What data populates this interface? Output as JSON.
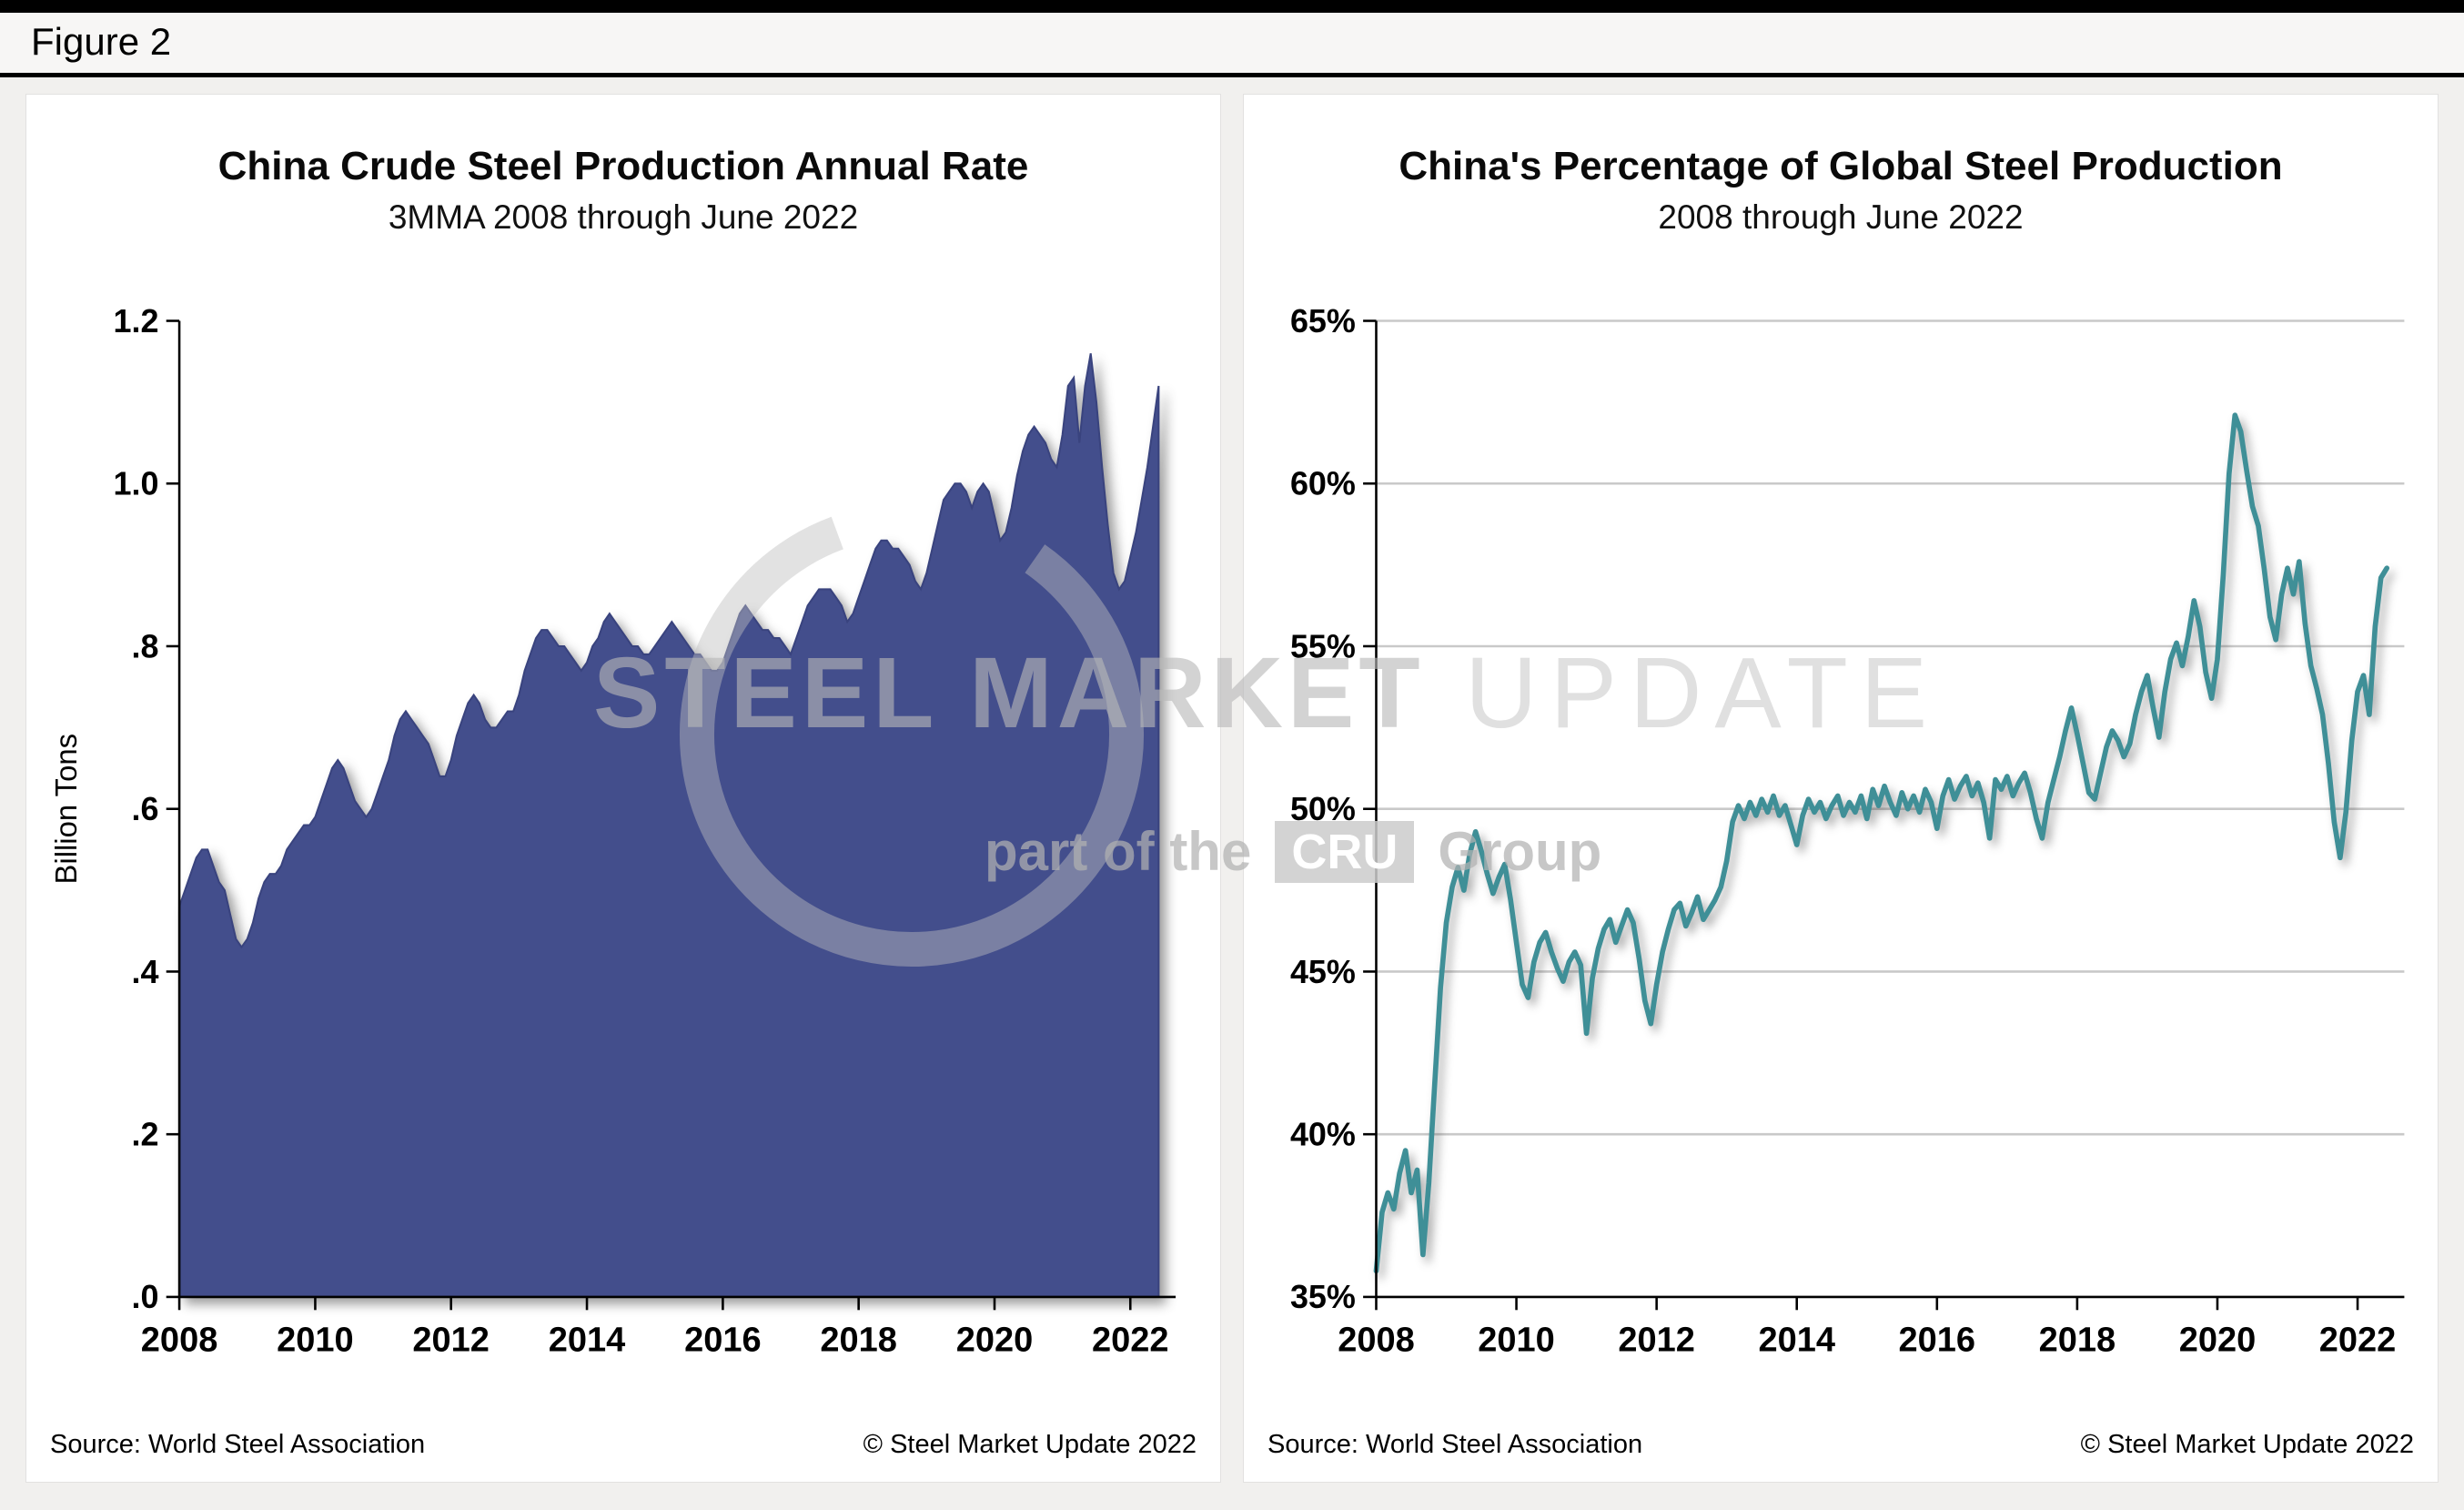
{
  "figure_label": "Figure 2",
  "watermark": {
    "title_bold": "STEEL MARKET",
    "title_light": " UPDATE",
    "subtitle_prefix": "part of the",
    "subtitle_badge": "CRU",
    "subtitle_suffix": "Group"
  },
  "chart_data": [
    {
      "type": "area",
      "title": "China Crude Steel Production Annual Rate",
      "subtitle": "3MMA 2008 through June 2022",
      "ylabel": "Billion Tons",
      "ylim": [
        0,
        1.2
      ],
      "ytick_values": [
        0,
        0.2,
        0.4,
        0.6,
        0.8,
        1.0,
        1.2
      ],
      "ytick_labels": [
        ".0",
        ".2",
        ".4",
        ".6",
        ".8",
        "1.0",
        "1.2"
      ],
      "xtick_labels": [
        "2008",
        "2010",
        "2012",
        "2014",
        "2016",
        "2018",
        "2020",
        "2022"
      ],
      "x_start": "2008-01",
      "x_end": "2022-06",
      "frequency": "monthly",
      "grid": false,
      "fill_color": "#434E8C",
      "edge_color": "#39437e",
      "source": "Source: World Steel Association",
      "copyright": "© Steel Market Update 2022",
      "values": [
        0.48,
        0.5,
        0.52,
        0.54,
        0.55,
        0.55,
        0.53,
        0.51,
        0.5,
        0.47,
        0.44,
        0.43,
        0.44,
        0.46,
        0.49,
        0.51,
        0.52,
        0.52,
        0.53,
        0.55,
        0.56,
        0.57,
        0.58,
        0.58,
        0.59,
        0.61,
        0.63,
        0.65,
        0.66,
        0.65,
        0.63,
        0.61,
        0.6,
        0.59,
        0.6,
        0.62,
        0.64,
        0.66,
        0.69,
        0.71,
        0.72,
        0.71,
        0.7,
        0.69,
        0.68,
        0.66,
        0.64,
        0.64,
        0.66,
        0.69,
        0.71,
        0.73,
        0.74,
        0.73,
        0.71,
        0.7,
        0.7,
        0.71,
        0.72,
        0.72,
        0.74,
        0.77,
        0.79,
        0.81,
        0.82,
        0.82,
        0.81,
        0.8,
        0.8,
        0.79,
        0.78,
        0.77,
        0.78,
        0.8,
        0.81,
        0.83,
        0.84,
        0.83,
        0.82,
        0.81,
        0.8,
        0.8,
        0.79,
        0.79,
        0.8,
        0.81,
        0.82,
        0.83,
        0.82,
        0.81,
        0.8,
        0.79,
        0.79,
        0.78,
        0.77,
        0.77,
        0.78,
        0.8,
        0.82,
        0.84,
        0.85,
        0.84,
        0.83,
        0.82,
        0.82,
        0.81,
        0.81,
        0.8,
        0.79,
        0.81,
        0.83,
        0.85,
        0.86,
        0.87,
        0.87,
        0.87,
        0.86,
        0.85,
        0.83,
        0.84,
        0.86,
        0.88,
        0.9,
        0.92,
        0.93,
        0.93,
        0.92,
        0.92,
        0.91,
        0.9,
        0.88,
        0.87,
        0.89,
        0.92,
        0.95,
        0.98,
        0.99,
        1.0,
        1.0,
        0.99,
        0.97,
        0.99,
        1.0,
        0.99,
        0.96,
        0.93,
        0.94,
        0.97,
        1.01,
        1.04,
        1.06,
        1.07,
        1.06,
        1.05,
        1.03,
        1.02,
        1.06,
        1.12,
        1.13,
        1.05,
        1.12,
        1.16,
        1.1,
        1.02,
        0.95,
        0.89,
        0.87,
        0.88,
        0.91,
        0.94,
        0.98,
        1.02,
        1.07,
        1.12
      ]
    },
    {
      "type": "line",
      "title": "China's Percentage of Global Steel Production",
      "subtitle": "2008 through June 2022",
      "ylabel": "",
      "ylim": [
        35,
        65
      ],
      "ytick_values": [
        35,
        40,
        45,
        50,
        55,
        60,
        65
      ],
      "ytick_labels": [
        "35%",
        "40%",
        "45%",
        "50%",
        "55%",
        "60%",
        "65%"
      ],
      "xtick_labels": [
        "2008",
        "2010",
        "2012",
        "2014",
        "2016",
        "2018",
        "2020",
        "2022"
      ],
      "x_start": "2008-01",
      "x_end": "2022-06",
      "frequency": "monthly",
      "grid": true,
      "grid_color": "#c9c9c9",
      "line_color": "#3F8F97",
      "source": "Source: World Steel Association",
      "copyright": "© Steel Market Update 2022",
      "values": [
        35.8,
        37.6,
        38.2,
        37.7,
        38.8,
        39.5,
        38.2,
        38.9,
        36.3,
        38.5,
        41.5,
        44.5,
        46.5,
        47.6,
        48.2,
        47.5,
        48.6,
        49.3,
        48.7,
        48.0,
        47.4,
        47.9,
        48.3,
        47.2,
        45.9,
        44.6,
        44.2,
        45.3,
        45.9,
        46.2,
        45.6,
        45.1,
        44.7,
        45.3,
        45.6,
        45.2,
        43.1,
        44.8,
        45.7,
        46.3,
        46.6,
        45.9,
        46.4,
        46.9,
        46.5,
        45.4,
        44.1,
        43.4,
        44.6,
        45.6,
        46.3,
        46.9,
        47.1,
        46.4,
        46.8,
        47.3,
        46.6,
        46.9,
        47.2,
        47.6,
        48.4,
        49.6,
        50.1,
        49.7,
        50.2,
        49.8,
        50.3,
        49.9,
        50.4,
        49.8,
        50.1,
        49.5,
        48.9,
        49.8,
        50.3,
        49.9,
        50.2,
        49.7,
        50.1,
        50.4,
        49.8,
        50.2,
        49.9,
        50.4,
        49.7,
        50.6,
        50.1,
        50.7,
        50.2,
        49.8,
        50.5,
        50.0,
        50.4,
        49.9,
        50.6,
        50.2,
        49.4,
        50.4,
        50.9,
        50.3,
        50.7,
        51.0,
        50.4,
        50.8,
        50.2,
        49.1,
        50.9,
        50.6,
        51.0,
        50.4,
        50.8,
        51.1,
        50.5,
        49.7,
        49.1,
        50.2,
        50.9,
        51.6,
        52.4,
        53.1,
        52.3,
        51.4,
        50.5,
        50.3,
        51.1,
        51.9,
        52.4,
        52.1,
        51.6,
        52.0,
        52.9,
        53.6,
        54.1,
        53.1,
        52.2,
        53.6,
        54.6,
        55.1,
        54.4,
        55.3,
        56.4,
        55.6,
        54.2,
        53.4,
        54.6,
        57.2,
        60.3,
        62.1,
        61.6,
        60.4,
        59.3,
        58.7,
        57.4,
        55.9,
        55.2,
        56.6,
        57.4,
        56.6,
        57.6,
        55.7,
        54.4,
        53.7,
        52.9,
        51.4,
        49.6,
        48.5,
        49.9,
        52.1,
        53.6,
        54.1,
        52.9,
        55.6,
        57.1,
        57.4
      ]
    }
  ]
}
